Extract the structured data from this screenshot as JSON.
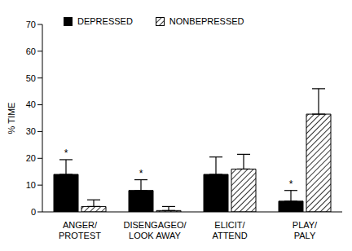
{
  "chart_data": {
    "type": "bar",
    "y_label": "% TIME",
    "categories": [
      "ANGER/\nPROTEST",
      "DISENGAGEO/\nLOOK AWAY",
      "ELICIT/\nATTEND",
      "PLAY/\nPALY"
    ],
    "series": [
      {
        "name": "DEPRESSED",
        "color": "#000000",
        "values": [
          14,
          8,
          14,
          4
        ],
        "errors": [
          5.5,
          4,
          6.5,
          4
        ],
        "significance": [
          "*",
          "*",
          null,
          "*"
        ]
      },
      {
        "name": "NONBEPRESSED",
        "color": "#000000",
        "values": [
          2,
          0.5,
          16,
          36.5
        ],
        "errors": [
          2.5,
          1.5,
          5.5,
          9.5
        ]
      }
    ],
    "ylim": [
      0,
      70
    ],
    "yticks": [
      0,
      10,
      20,
      30,
      40,
      50,
      60,
      70
    ],
    "grid": false,
    "legend": "top-left"
  }
}
